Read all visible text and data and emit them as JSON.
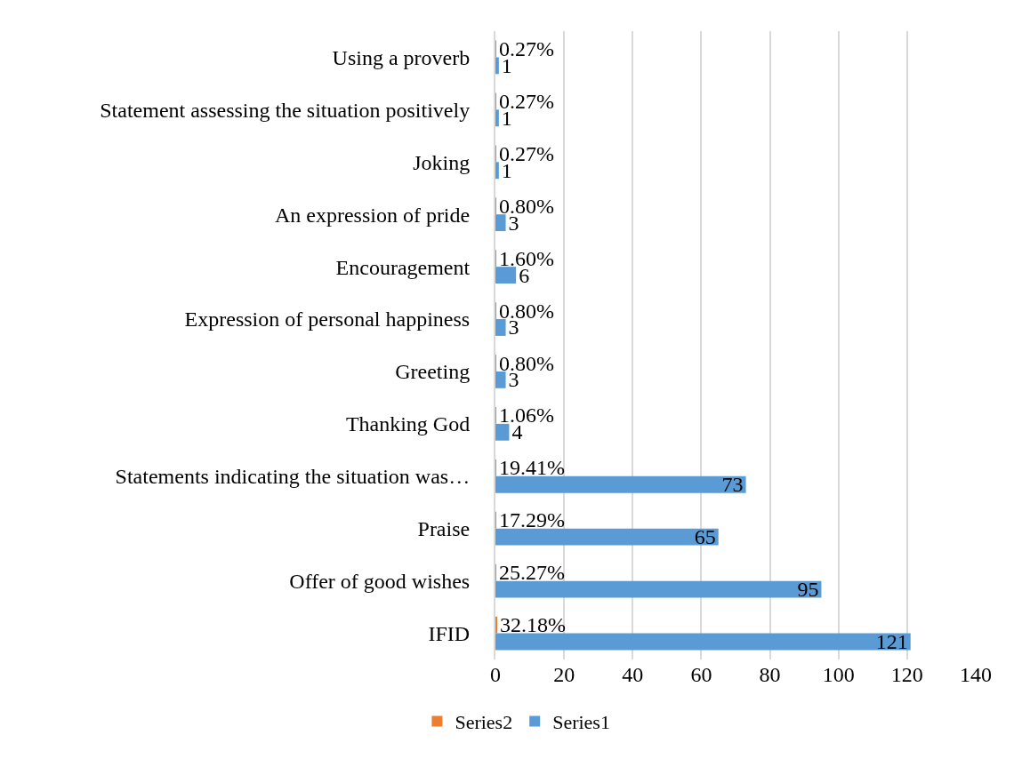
{
  "chart_data": {
    "type": "bar",
    "orientation": "horizontal",
    "categories": [
      "Using a proverb",
      "Statement assessing the situation positively",
      "Joking",
      "An expression of pride",
      "Encouragement",
      "Expression of personal happiness",
      "Greeting",
      "Thanking God",
      "Statements indicating the situation was…",
      "Praise",
      "Offer of good wishes",
      "IFID"
    ],
    "series": [
      {
        "name": "Series2",
        "color": "#ed7d31",
        "values": [
          0.0027,
          0.0027,
          0.0027,
          0.008,
          0.016,
          0.008,
          0.008,
          0.0106,
          0.1941,
          0.1729,
          0.2527,
          0.3218
        ],
        "value_labels": [
          "0.27%",
          "0.27%",
          "0.27%",
          "0.80%",
          "1.60%",
          "0.80%",
          "0.80%",
          "1.06%",
          "19.41%",
          "17.29%",
          "25.27%",
          "32.18%"
        ]
      },
      {
        "name": "Series1",
        "color": "#5b9bd5",
        "values": [
          1,
          1,
          1,
          3,
          6,
          3,
          3,
          4,
          73,
          65,
          95,
          121
        ],
        "value_labels": [
          "1",
          "1",
          "1",
          "3",
          "6",
          "3",
          "3",
          "4",
          "73",
          "65",
          "95",
          "121"
        ]
      }
    ],
    "xlim": [
      0,
      140
    ],
    "xticks": [
      0,
      20,
      40,
      60,
      80,
      100,
      120,
      140
    ],
    "grid": "x",
    "legend": "bottom"
  }
}
